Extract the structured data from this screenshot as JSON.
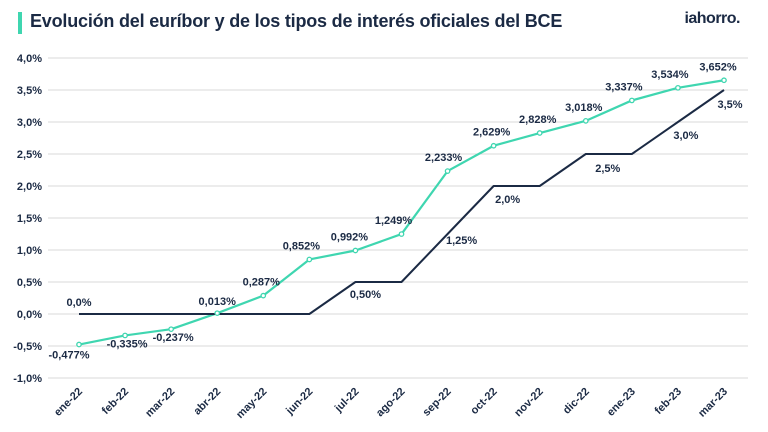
{
  "header": {
    "title": "Evolución del euríbor y de los tipos de interés oficiales del BCE",
    "logo": "iahorro."
  },
  "colors": {
    "euribor": "#3fd6b0",
    "bce": "#1b2a44",
    "grid": "#d9d9d9",
    "accent": "#3fd6b0"
  },
  "chart_data": {
    "type": "line",
    "title": "Evolución del euríbor y de los tipos de interés oficiales del BCE",
    "categories": [
      "ene-22",
      "feb-22",
      "mar-22",
      "abr-22",
      "may-22",
      "jun-22",
      "jul-22",
      "ago-22",
      "sep-22",
      "oct-22",
      "nov-22",
      "dic-22",
      "ene-23",
      "feb-23",
      "mar-23"
    ],
    "ylim": [
      -1.0,
      4.0
    ],
    "yticks": [
      -1.0,
      -0.5,
      0.0,
      0.5,
      1.0,
      1.5,
      2.0,
      2.5,
      3.0,
      3.5,
      4.0
    ],
    "ytick_labels": [
      "-1,0%",
      "-0,5%",
      "0,0%",
      "0,5%",
      "1,0%",
      "1,5%",
      "2,0%",
      "2,5%",
      "3,0%",
      "3,5%",
      "4,0%"
    ],
    "grid": true,
    "series": [
      {
        "name": "Euríbor",
        "values": [
          -0.477,
          -0.335,
          -0.237,
          0.013,
          0.287,
          0.852,
          0.992,
          1.249,
          2.233,
          2.629,
          2.828,
          3.018,
          3.337,
          3.534,
          3.652
        ],
        "labels": [
          "-0,477%",
          "-0,335%",
          "-0,237%",
          "0,013%",
          "0,287%",
          "0,852%",
          "0,992%",
          "1,249%",
          "2,233%",
          "2,629%",
          "2,828%",
          "3,018%",
          "3,337%",
          "3,534%",
          "3,652%"
        ]
      },
      {
        "name": "BCE",
        "values": [
          0.0,
          0.0,
          0.0,
          0.0,
          0.0,
          0.0,
          0.5,
          0.5,
          1.25,
          2.0,
          2.0,
          2.5,
          2.5,
          3.0,
          3.5
        ],
        "labels": [
          {
            "index": 0,
            "text": "0,0%"
          },
          {
            "index": 6,
            "text": "0,50%"
          },
          {
            "index": 8,
            "text": "1,25%"
          },
          {
            "index": 9,
            "text": "2,0%"
          },
          {
            "index": 11,
            "text": "2,5%"
          },
          {
            "index": 13,
            "text": "3,0%"
          },
          {
            "index": 14,
            "text": "3,5%"
          }
        ]
      }
    ]
  }
}
